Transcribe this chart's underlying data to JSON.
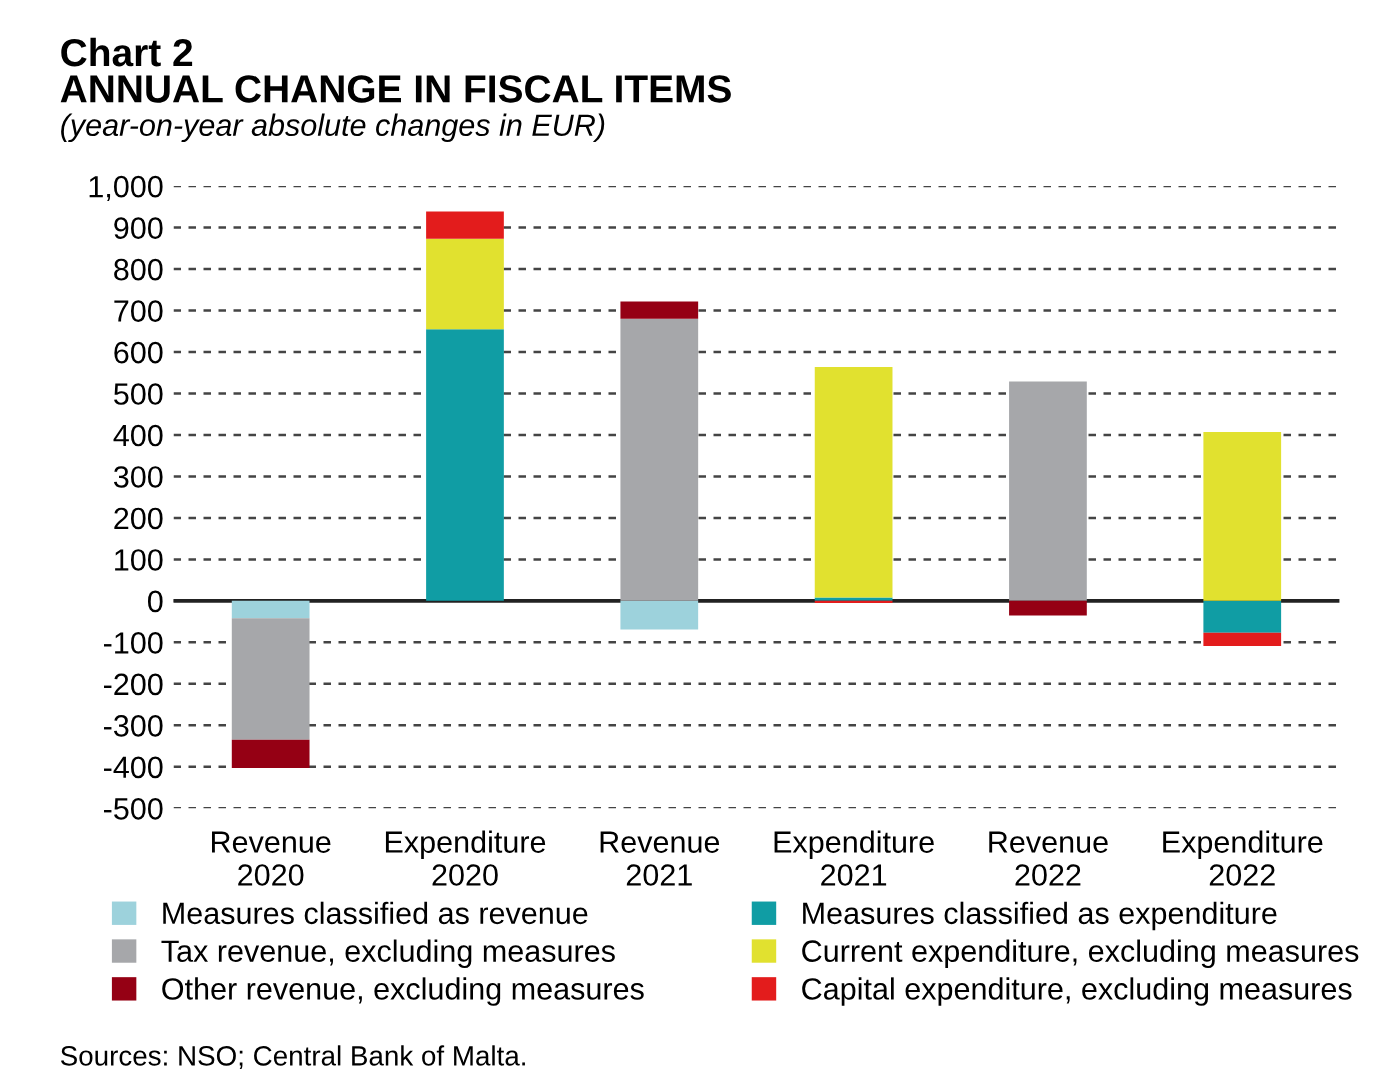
{
  "chart_data": {
    "type": "bar",
    "stacked": true,
    "title": "Chart 2\nANNUAL CHANGE IN FISCAL ITEMS",
    "subtitle": "(year-on-year absolute changes in EUR)",
    "categories": [
      "Revenue\n2020",
      "Expenditure\n2020",
      "Revenue\n2021",
      "Expenditure\n2021",
      "Revenue\n2022",
      "Expenditure\n2022"
    ],
    "series": [
      {
        "name": "Measures classified as revenue",
        "color": "#9dd2dc",
        "values": [
          -42,
          null,
          -69,
          null,
          null,
          null
        ]
      },
      {
        "name": "Measures classified as expenditure",
        "color": "#109da4",
        "values": [
          null,
          655,
          null,
          8,
          null,
          -77
        ]
      },
      {
        "name": "Tax revenue, excluding measures",
        "color": "#a6a7aa",
        "values": [
          -293,
          null,
          680,
          null,
          529,
          null
        ]
      },
      {
        "name": "Current expenditure, excluding measures",
        "color": "#e1e12f",
        "values": [
          null,
          218,
          null,
          556,
          null,
          407
        ]
      },
      {
        "name": "Other revenue, excluding measures",
        "color": "#950014",
        "values": [
          -68,
          null,
          42,
          null,
          -35,
          null
        ]
      },
      {
        "name": "Capital expenditure, excluding measures",
        "color": "#e31c1c",
        "values": [
          null,
          66,
          null,
          -5,
          null,
          -32
        ]
      }
    ],
    "ylim": [
      -500,
      1000
    ],
    "yticks": [
      -500,
      -400,
      -300,
      -200,
      -100,
      0,
      100,
      200,
      300,
      400,
      500,
      600,
      700,
      800,
      900,
      {
        "value": 1000,
        "label": "1,000"
      }
    ],
    "grid": "y",
    "legend": "bottom",
    "annotations": [
      "Sources: NSO; Central Bank of Malta."
    ]
  }
}
